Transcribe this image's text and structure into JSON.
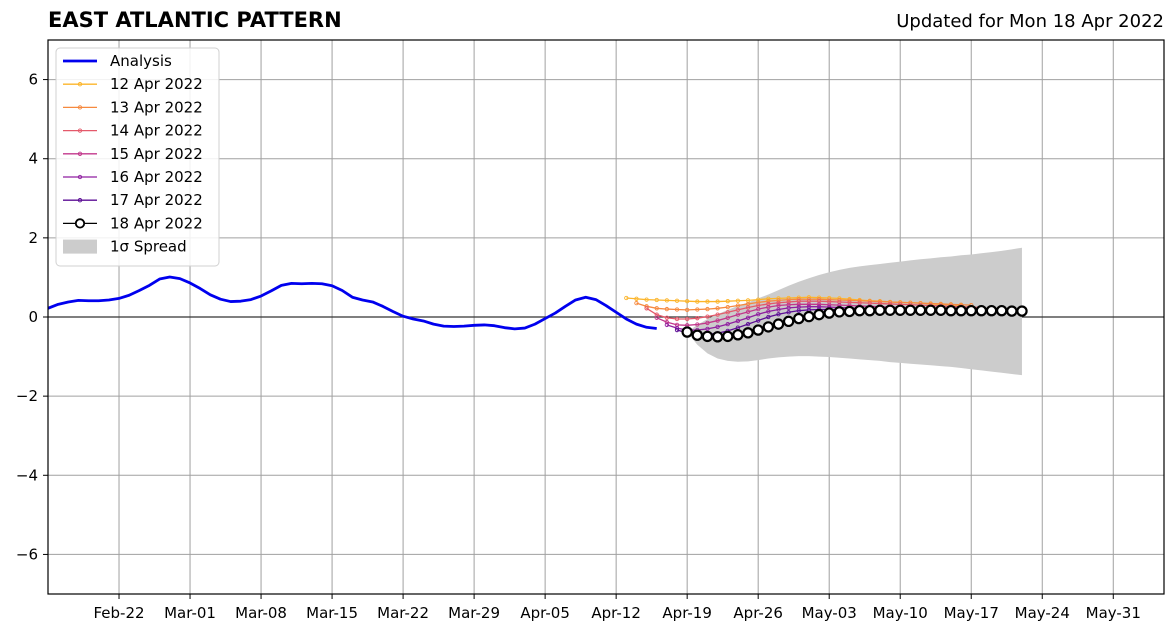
{
  "header": {
    "title": "EAST ATLANTIC PATTERN",
    "updated": "Updated for Mon 18 Apr 2022"
  },
  "chart_data": {
    "type": "line",
    "title": "EAST ATLANTIC PATTERN",
    "xlabel": "",
    "ylabel": "",
    "ylim": [
      -7,
      7
    ],
    "xlim": [
      "2022-02-15",
      "2022-06-05"
    ],
    "yticks": [
      -6,
      -4,
      -2,
      0,
      2,
      4,
      6
    ],
    "ytick_labels": [
      "−6",
      "−4",
      "−2",
      "0",
      "2",
      "4",
      "6"
    ],
    "xticks": [
      "2022-02-22",
      "2022-03-01",
      "2022-03-08",
      "2022-03-15",
      "2022-03-22",
      "2022-03-29",
      "2022-04-05",
      "2022-04-12",
      "2022-04-19",
      "2022-04-26",
      "2022-05-03",
      "2022-05-10",
      "2022-05-17",
      "2022-05-24",
      "2022-05-31"
    ],
    "xtick_labels": [
      "Feb-22",
      "Mar-01",
      "Mar-08",
      "Mar-15",
      "Mar-22",
      "Mar-29",
      "Apr-05",
      "Apr-12",
      "Apr-19",
      "Apr-26",
      "May-03",
      "May-10",
      "May-17",
      "May-24",
      "May-31"
    ],
    "grid": true,
    "legend_position": "top-left",
    "analysis": {
      "name": "Analysis",
      "color": "#0000ee",
      "start": "2022-02-15",
      "values": [
        0.22,
        0.32,
        0.38,
        0.42,
        0.41,
        0.41,
        0.43,
        0.47,
        0.55,
        0.67,
        0.8,
        0.96,
        1.01,
        0.97,
        0.86,
        0.72,
        0.56,
        0.45,
        0.39,
        0.4,
        0.44,
        0.53,
        0.66,
        0.8,
        0.85,
        0.84,
        0.85,
        0.84,
        0.79,
        0.67,
        0.5,
        0.43,
        0.38,
        0.27,
        0.14,
        0.02,
        -0.05,
        -0.1,
        -0.18,
        -0.23,
        -0.24,
        -0.23,
        -0.21,
        -0.2,
        -0.22,
        -0.27,
        -0.3,
        -0.28,
        -0.18,
        -0.04,
        0.1,
        0.27,
        0.43,
        0.5,
        0.44,
        0.29,
        0.12,
        -0.05,
        -0.18,
        -0.26,
        -0.29
      ]
    },
    "forecasts": [
      {
        "name": "12 Apr 2022",
        "color": "#fcb52a",
        "start": "2022-04-13",
        "values": [
          0.48,
          0.46,
          0.44,
          0.43,
          0.42,
          0.41,
          0.4,
          0.39,
          0.39,
          0.39,
          0.4,
          0.41,
          0.42,
          0.44,
          0.46,
          0.47,
          0.48,
          0.49,
          0.5,
          0.49,
          0.48,
          0.47,
          0.45,
          0.43,
          0.41,
          0.4,
          0.38,
          0.37,
          0.36,
          0.35,
          0.33,
          0.32,
          0.31,
          0.29
        ]
      },
      {
        "name": "13 Apr 2022",
        "color": "#f6893f",
        "start": "2022-04-14",
        "values": [
          0.35,
          0.27,
          0.22,
          0.2,
          0.19,
          0.18,
          0.19,
          0.2,
          0.22,
          0.25,
          0.29,
          0.33,
          0.37,
          0.4,
          0.42,
          0.44,
          0.45,
          0.45,
          0.45,
          0.44,
          0.43,
          0.42,
          0.41,
          0.4,
          0.39,
          0.38,
          0.37,
          0.36,
          0.35,
          0.34,
          0.33,
          0.32,
          0.31,
          0.3
        ]
      },
      {
        "name": "14 Apr 2022",
        "color": "#e4596a",
        "start": "2022-04-15",
        "values": [
          0.22,
          0.06,
          -0.02,
          -0.05,
          -0.05,
          -0.03,
          0.01,
          0.06,
          0.12,
          0.18,
          0.24,
          0.29,
          0.33,
          0.36,
          0.38,
          0.4,
          0.4,
          0.4,
          0.39,
          0.38,
          0.37,
          0.36,
          0.35,
          0.34,
          0.33,
          0.32,
          0.31,
          0.3,
          0.29,
          0.28,
          0.27,
          0.26,
          0.25,
          0.24
        ]
      },
      {
        "name": "15 Apr 2022",
        "color": "#c2378b",
        "start": "2022-04-16",
        "values": [
          -0.02,
          -0.13,
          -0.2,
          -0.21,
          -0.19,
          -0.15,
          -0.09,
          -0.02,
          0.06,
          0.13,
          0.2,
          0.25,
          0.29,
          0.31,
          0.32,
          0.32,
          0.32,
          0.31,
          0.3,
          0.29,
          0.28,
          0.27,
          0.26,
          0.25,
          0.24,
          0.23,
          0.22,
          0.21,
          0.21,
          0.2,
          0.19,
          0.19,
          0.18,
          0.18
        ]
      },
      {
        "name": "16 Apr 2022",
        "color": "#8f1fa0",
        "start": "2022-04-17",
        "values": [
          -0.2,
          -0.28,
          -0.33,
          -0.33,
          -0.3,
          -0.25,
          -0.18,
          -0.1,
          -0.02,
          0.07,
          0.14,
          0.19,
          0.23,
          0.25,
          0.26,
          0.26,
          0.25,
          0.24,
          0.23,
          0.22,
          0.21,
          0.21,
          0.2,
          0.19,
          0.18,
          0.18,
          0.17,
          0.17,
          0.16,
          0.16,
          0.15,
          0.15,
          0.15,
          0.14
        ]
      },
      {
        "name": "17 Apr 2022",
        "color": "#5b0d95",
        "start": "2022-04-18",
        "values": [
          -0.33,
          -0.4,
          -0.44,
          -0.44,
          -0.41,
          -0.35,
          -0.27,
          -0.18,
          -0.09,
          0.0,
          0.07,
          0.12,
          0.16,
          0.18,
          0.19,
          0.19,
          0.19,
          0.18,
          0.17,
          0.17,
          0.16,
          0.16,
          0.15,
          0.15,
          0.15,
          0.14,
          0.14,
          0.14,
          0.14,
          0.13,
          0.13,
          0.13,
          0.13,
          0.13
        ]
      },
      {
        "name": "18 Apr 2022",
        "color": "#000000",
        "start": "2022-04-19",
        "values": [
          -0.38,
          -0.46,
          -0.49,
          -0.5,
          -0.49,
          -0.45,
          -0.4,
          -0.33,
          -0.25,
          -0.18,
          -0.11,
          -0.04,
          0.01,
          0.06,
          0.1,
          0.13,
          0.14,
          0.16,
          0.16,
          0.17,
          0.17,
          0.17,
          0.17,
          0.17,
          0.17,
          0.17,
          0.16,
          0.16,
          0.16,
          0.16,
          0.16,
          0.16,
          0.15,
          0.15
        ]
      }
    ],
    "spread": {
      "name": "1σ Spread",
      "color": "#cccccc",
      "start": "2022-04-19",
      "upper": [
        -0.38,
        -0.2,
        -0.05,
        0.07,
        0.18,
        0.28,
        0.37,
        0.47,
        0.57,
        0.68,
        0.79,
        0.89,
        0.98,
        1.06,
        1.13,
        1.19,
        1.24,
        1.28,
        1.31,
        1.34,
        1.37,
        1.4,
        1.43,
        1.46,
        1.48,
        1.51,
        1.53,
        1.56,
        1.58,
        1.61,
        1.64,
        1.67,
        1.71,
        1.75
      ],
      "lower": [
        -0.38,
        -0.7,
        -0.92,
        -1.05,
        -1.11,
        -1.13,
        -1.12,
        -1.09,
        -1.05,
        -1.02,
        -1.0,
        -0.99,
        -0.99,
        -1.0,
        -1.01,
        -1.03,
        -1.05,
        -1.07,
        -1.09,
        -1.11,
        -1.14,
        -1.16,
        -1.18,
        -1.2,
        -1.22,
        -1.24,
        -1.26,
        -1.29,
        -1.32,
        -1.35,
        -1.38,
        -1.41,
        -1.44,
        -1.47
      ]
    }
  }
}
